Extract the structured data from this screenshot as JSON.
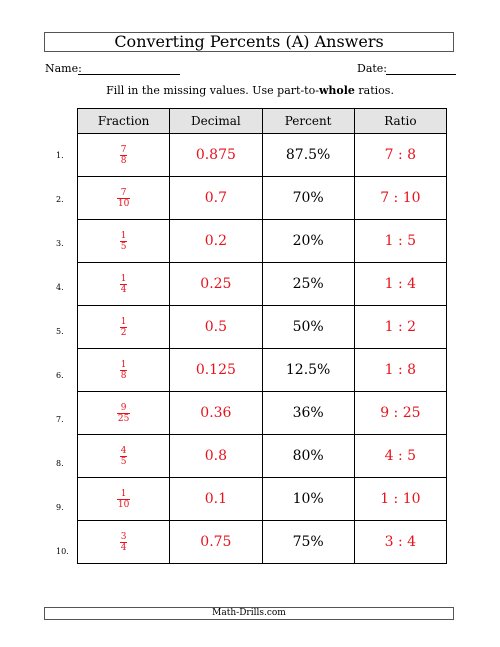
{
  "title": "Converting Percents (A) Answers",
  "name_label": "Name:",
  "date_label": "Date:",
  "instructions": {
    "prefix": "Fill in the missing values. Use part-to-",
    "emphasis": "whole",
    "suffix": " ratios."
  },
  "table": {
    "headers": [
      "Fraction",
      "Decimal",
      "Percent",
      "Ratio"
    ],
    "rows": [
      {
        "num": "1.",
        "fn": "7",
        "fd": "8",
        "decimal": "0.875",
        "percent": "87.5%",
        "ratio": "7 : 8"
      },
      {
        "num": "2.",
        "fn": "7",
        "fd": "10",
        "decimal": "0.7",
        "percent": "70%",
        "ratio": "7 : 10"
      },
      {
        "num": "3.",
        "fn": "1",
        "fd": "5",
        "decimal": "0.2",
        "percent": "20%",
        "ratio": "1 : 5"
      },
      {
        "num": "4.",
        "fn": "1",
        "fd": "4",
        "decimal": "0.25",
        "percent": "25%",
        "ratio": "1 : 4"
      },
      {
        "num": "5.",
        "fn": "1",
        "fd": "2",
        "decimal": "0.5",
        "percent": "50%",
        "ratio": "1 : 2"
      },
      {
        "num": "6.",
        "fn": "1",
        "fd": "8",
        "decimal": "0.125",
        "percent": "12.5%",
        "ratio": "1 : 8"
      },
      {
        "num": "7.",
        "fn": "9",
        "fd": "25",
        "decimal": "0.36",
        "percent": "36%",
        "ratio": "9 : 25"
      },
      {
        "num": "8.",
        "fn": "4",
        "fd": "5",
        "decimal": "0.8",
        "percent": "80%",
        "ratio": "4 : 5"
      },
      {
        "num": "9.",
        "fn": "1",
        "fd": "10",
        "decimal": "0.1",
        "percent": "10%",
        "ratio": "1 : 10"
      },
      {
        "num": "10.",
        "fn": "3",
        "fd": "4",
        "decimal": "0.75",
        "percent": "75%",
        "ratio": "3 : 4"
      }
    ]
  },
  "answer_color": "#e8121c",
  "footer": "Math-Drills.com"
}
